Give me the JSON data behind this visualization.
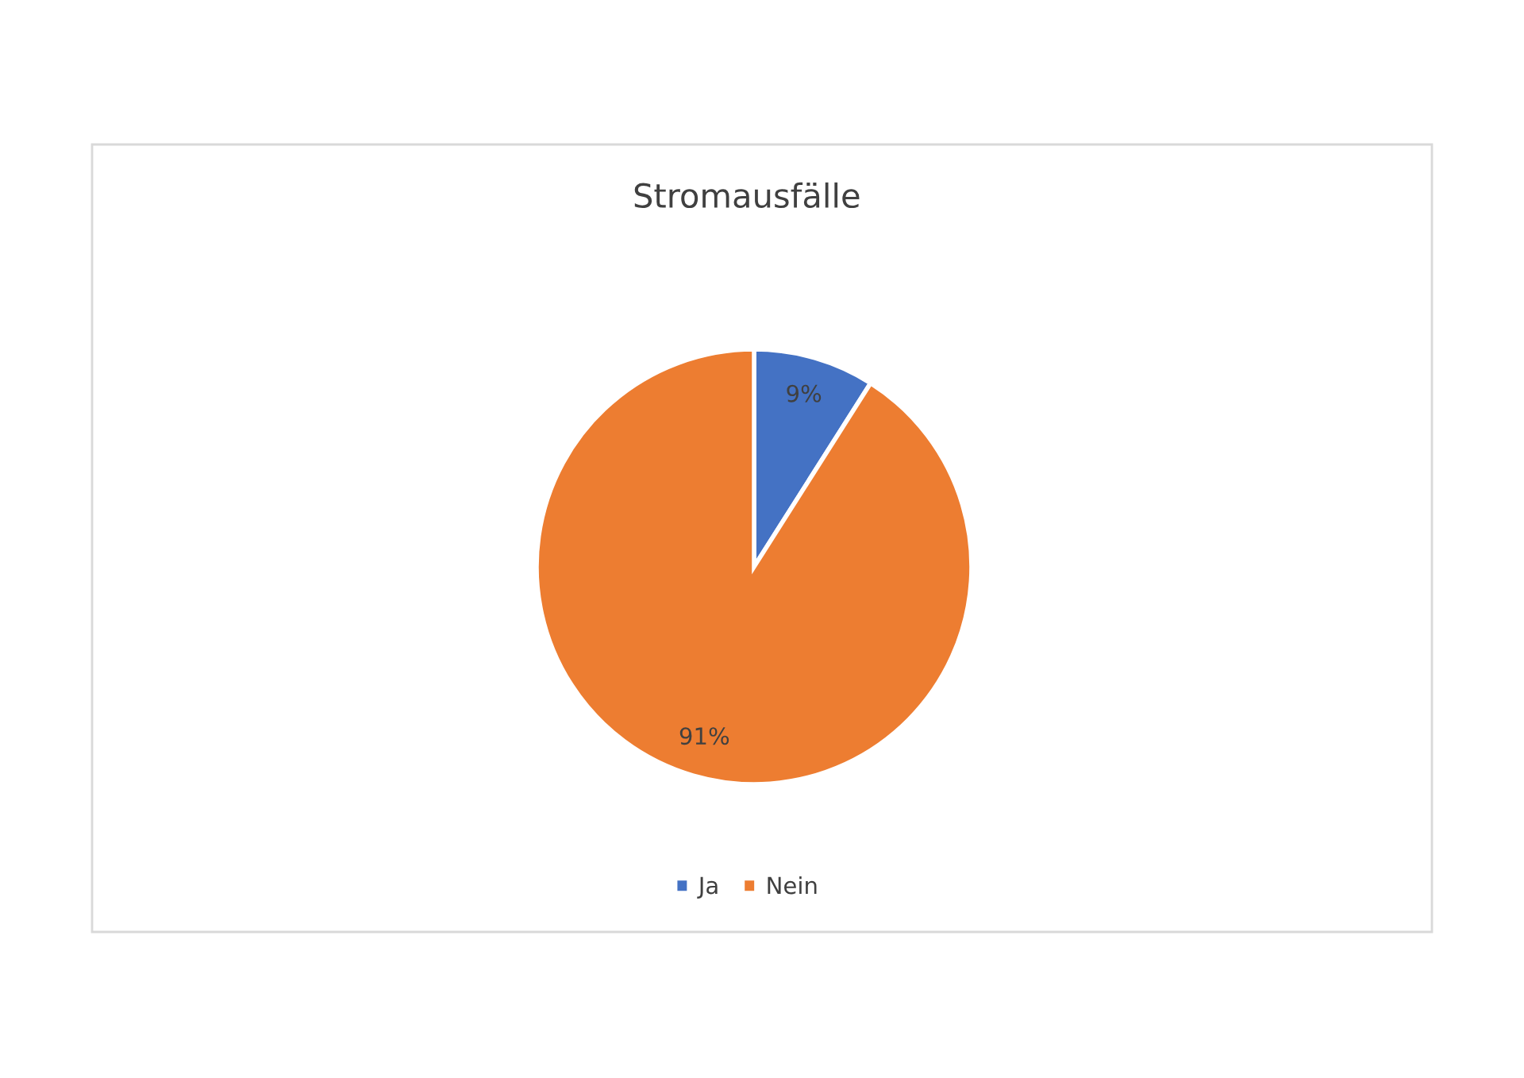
{
  "chart_data": {
    "type": "pie",
    "title": "Stromausfälle",
    "categories": [
      "Ja",
      "Nein"
    ],
    "values": [
      9,
      91
    ],
    "colors": [
      "#4472c4",
      "#ed7d31"
    ],
    "value_labels": [
      "9%",
      "91%"
    ],
    "legend": "bottom"
  }
}
